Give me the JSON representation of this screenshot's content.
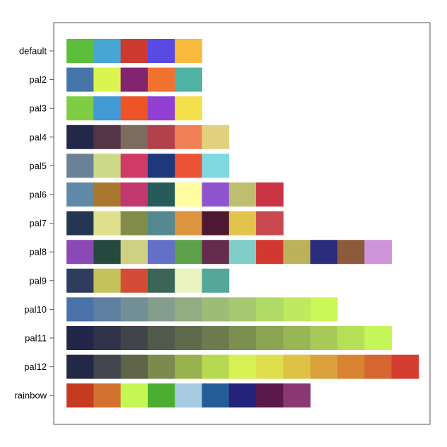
{
  "chart_data": {
    "type": "table",
    "title": "",
    "xlabel": "",
    "ylabel": "",
    "grid": false,
    "rows": [
      {
        "label": "default",
        "colors": [
          "#5DBE3B",
          "#48A6D4",
          "#CF3A30",
          "#584AE0",
          "#F8BB3E"
        ]
      },
      {
        "label": "pal2",
        "colors": [
          "#4775A8",
          "#DCF54E",
          "#82246F",
          "#F1722F",
          "#50B2A2"
        ]
      },
      {
        "label": "pal3",
        "colors": [
          "#7FCD42",
          "#4399D4",
          "#EE5428",
          "#913ED1",
          "#F3E04B"
        ]
      },
      {
        "label": "pal4",
        "colors": [
          "#23284B",
          "#533546",
          "#7A6D5F",
          "#B1414A",
          "#F08156",
          "#E2D280"
        ]
      },
      {
        "label": "pal5",
        "colors": [
          "#6A8197",
          "#CCD988",
          "#CF3B64",
          "#1E387C",
          "#EB5234",
          "#7FD9E0"
        ]
      },
      {
        "label": "pal6",
        "colors": [
          "#6089A7",
          "#A9772E",
          "#C2376D",
          "#255B5B",
          "#FFFD9F",
          "#8E54D0",
          "#BFBE70",
          "#C93343"
        ]
      },
      {
        "label": "pal7",
        "colors": [
          "#233753",
          "#E0E08C",
          "#808D48",
          "#548991",
          "#DD943E",
          "#501733",
          "#E2C34C",
          "#C9494E"
        ]
      },
      {
        "label": "pal8",
        "colors": [
          "#8A49B4",
          "#25493F",
          "#CFD081",
          "#6270C8",
          "#5DA14A",
          "#642B4C",
          "#81CEC8",
          "#D2382F",
          "#BDB15A",
          "#2B2C7C",
          "#8D5A3B",
          "#CE94D8"
        ]
      },
      {
        "label": "pal9",
        "colors": [
          "#2E3C5D",
          "#C4C25A",
          "#D54C36",
          "#3B6657",
          "#EBF4C0",
          "#53A89A"
        ]
      },
      {
        "label": "pal10",
        "colors": [
          "#4A72A9",
          "#5E80A0",
          "#728F98",
          "#849E8E",
          "#91AD82",
          "#9DBC78",
          "#A6C970",
          "#B1DB67",
          "#BFE95E",
          "#C9F757"
        ]
      },
      {
        "label": "pal11",
        "colors": [
          "#222648",
          "#313448",
          "#414449",
          "#4F5A4C",
          "#5F6A4D",
          "#6C7C4F",
          "#7A8F50",
          "#8AA452",
          "#98B656",
          "#A9CA58",
          "#B6E058",
          "#C5F659"
        ]
      },
      {
        "label": "pal12",
        "colors": [
          "#232847",
          "#42454C",
          "#5D6447",
          "#7C8A50",
          "#9AB24E",
          "#B7D952",
          "#D9F055",
          "#DFDE4C",
          "#DDC243",
          "#DBA13C",
          "#D98433",
          "#D66631",
          "#D33C2F"
        ]
      },
      {
        "label": "rainbow",
        "colors": [
          "#C43B21",
          "#D37130",
          "#C4F654",
          "#4CAE31",
          "#A6CADF",
          "#245C98",
          "#23237C",
          "#5B194A",
          "#8A3872"
        ]
      }
    ]
  }
}
